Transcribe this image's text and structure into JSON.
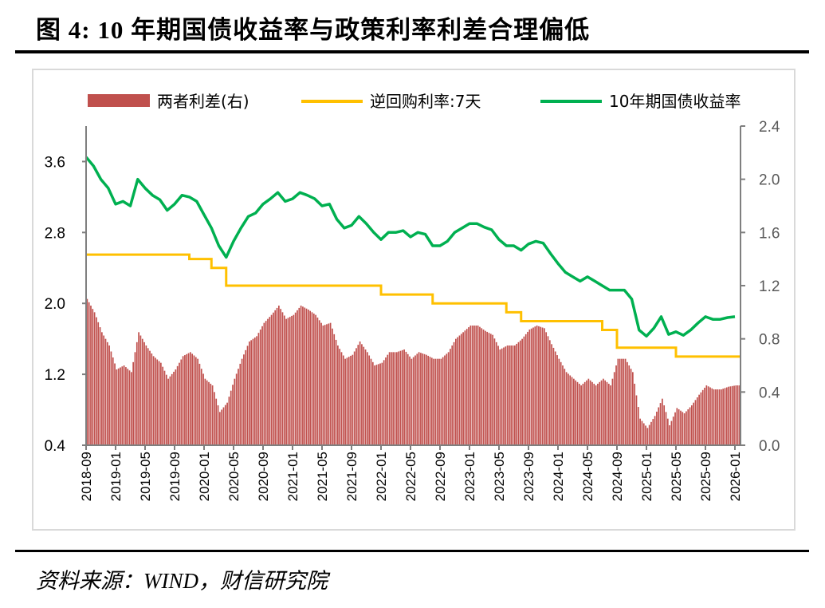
{
  "title": "图 4:  10 年期国债收益率与政策利率利差合理偏低",
  "source": "资料来源：WIND，财信研究院",
  "chart_data": {
    "type": "bar+line",
    "title": "",
    "left_axis": {
      "ylim": [
        0.4,
        4.0
      ],
      "ticks": [
        "0.4",
        "1.2",
        "2.0",
        "2.8",
        "3.6"
      ]
    },
    "right_axis": {
      "ylim": [
        0.0,
        2.4
      ],
      "ticks": [
        "0.0",
        "0.4",
        "0.8",
        "1.2",
        "1.6",
        "2.0",
        "2.4"
      ]
    },
    "x_tick_labels": [
      "2018-09",
      "2019-01",
      "2019-05",
      "2019-09",
      "2020-01",
      "2020-05",
      "2020-09",
      "2021-01",
      "2021-05",
      "2021-09",
      "2022-01",
      "2022-05",
      "2022-09",
      "2023-01",
      "2023-05",
      "2023-09",
      "2024-01",
      "2024-05",
      "2024-09",
      "2025-01",
      "2025-05",
      "2025-09",
      "2026-01"
    ],
    "legend_position": "top",
    "grid": false,
    "start_month": "2018-09",
    "series": [
      {
        "name": "两者利差(右)",
        "type": "bar",
        "axis": "right",
        "color": "#c0504d",
        "values": [
          1.1,
          1.0,
          0.85,
          0.75,
          0.57,
          0.6,
          0.55,
          0.85,
          0.75,
          0.67,
          0.62,
          0.5,
          0.57,
          0.67,
          0.7,
          0.65,
          0.5,
          0.45,
          0.25,
          0.32,
          0.5,
          0.65,
          0.78,
          0.82,
          0.92,
          0.98,
          1.05,
          0.95,
          0.98,
          1.05,
          1.02,
          0.98,
          0.9,
          0.92,
          0.75,
          0.65,
          0.68,
          0.78,
          0.7,
          0.6,
          0.62,
          0.7,
          0.7,
          0.72,
          0.65,
          0.7,
          0.68,
          0.65,
          0.65,
          0.7,
          0.8,
          0.85,
          0.9,
          0.9,
          0.86,
          0.83,
          0.72,
          0.75,
          0.75,
          0.8,
          0.87,
          0.9,
          0.88,
          0.76,
          0.65,
          0.55,
          0.5,
          0.45,
          0.5,
          0.45,
          0.5,
          0.45,
          0.65,
          0.65,
          0.55,
          0.2,
          0.13,
          0.22,
          0.35,
          0.15,
          0.28,
          0.24,
          0.3,
          0.38,
          0.45,
          0.42,
          0.42,
          0.44,
          0.45
        ]
      },
      {
        "name": "逆回购利率:7天",
        "type": "step",
        "axis": "left",
        "color": "#ffc000",
        "values": [
          2.55,
          2.55,
          2.55,
          2.55,
          2.55,
          2.55,
          2.55,
          2.55,
          2.55,
          2.55,
          2.55,
          2.55,
          2.55,
          2.55,
          2.5,
          2.5,
          2.5,
          2.4,
          2.4,
          2.2,
          2.2,
          2.2,
          2.2,
          2.2,
          2.2,
          2.2,
          2.2,
          2.2,
          2.2,
          2.2,
          2.2,
          2.2,
          2.2,
          2.2,
          2.2,
          2.2,
          2.2,
          2.2,
          2.2,
          2.2,
          2.1,
          2.1,
          2.1,
          2.1,
          2.1,
          2.1,
          2.1,
          2.0,
          2.0,
          2.0,
          2.0,
          2.0,
          2.0,
          2.0,
          2.0,
          2.0,
          2.0,
          1.9,
          1.9,
          1.8,
          1.8,
          1.8,
          1.8,
          1.8,
          1.8,
          1.8,
          1.8,
          1.8,
          1.8,
          1.8,
          1.7,
          1.7,
          1.5,
          1.5,
          1.5,
          1.5,
          1.5,
          1.5,
          1.5,
          1.5,
          1.4,
          1.4,
          1.4,
          1.4,
          1.4,
          1.4,
          1.4,
          1.4,
          1.4
        ]
      },
      {
        "name": "10年期国债收益率",
        "type": "line",
        "axis": "left",
        "color": "#00b050",
        "values": [
          3.65,
          3.55,
          3.4,
          3.3,
          3.12,
          3.15,
          3.1,
          3.4,
          3.3,
          3.22,
          3.17,
          3.05,
          3.12,
          3.22,
          3.2,
          3.15,
          3.0,
          2.85,
          2.65,
          2.52,
          2.7,
          2.85,
          2.98,
          3.02,
          3.12,
          3.18,
          3.25,
          3.15,
          3.18,
          3.25,
          3.22,
          3.18,
          3.1,
          3.12,
          2.95,
          2.85,
          2.88,
          2.98,
          2.9,
          2.8,
          2.72,
          2.8,
          2.8,
          2.82,
          2.75,
          2.8,
          2.78,
          2.65,
          2.65,
          2.7,
          2.8,
          2.85,
          2.9,
          2.9,
          2.86,
          2.83,
          2.72,
          2.65,
          2.65,
          2.6,
          2.67,
          2.7,
          2.68,
          2.56,
          2.45,
          2.35,
          2.3,
          2.25,
          2.3,
          2.25,
          2.2,
          2.15,
          2.15,
          2.15,
          2.05,
          1.7,
          1.63,
          1.72,
          1.85,
          1.65,
          1.68,
          1.64,
          1.7,
          1.78,
          1.85,
          1.82,
          1.82,
          1.84,
          1.85
        ]
      }
    ]
  }
}
